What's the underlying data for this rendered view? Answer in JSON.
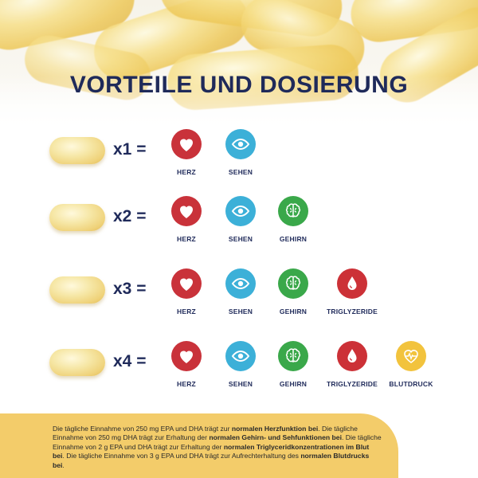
{
  "title": "VORTEILE UND DOSIERUNG",
  "rows": [
    {
      "multiplier": "x1 =",
      "benefits": [
        {
          "label": "HERZ",
          "icon": "heart-icon"
        },
        {
          "label": "SEHEN",
          "icon": "eye-icon"
        }
      ]
    },
    {
      "multiplier": "x2 =",
      "benefits": [
        {
          "label": "HERZ",
          "icon": "heart-icon"
        },
        {
          "label": "SEHEN",
          "icon": "eye-icon"
        },
        {
          "label": "GEHIRN",
          "icon": "brain-icon"
        }
      ]
    },
    {
      "multiplier": "x3 =",
      "benefits": [
        {
          "label": "HERZ",
          "icon": "heart-icon"
        },
        {
          "label": "SEHEN",
          "icon": "eye-icon"
        },
        {
          "label": "GEHIRN",
          "icon": "brain-icon"
        },
        {
          "label": "TRIGLYZERIDE",
          "icon": "blood-drop-icon"
        }
      ]
    },
    {
      "multiplier": "x4 =",
      "benefits": [
        {
          "label": "HERZ",
          "icon": "heart-icon"
        },
        {
          "label": "SEHEN",
          "icon": "eye-icon"
        },
        {
          "label": "GEHIRN",
          "icon": "brain-icon"
        },
        {
          "label": "TRIGLYZERIDE",
          "icon": "blood-drop-icon"
        },
        {
          "label": "BLUTDRUCK",
          "icon": "heart-pulse-icon"
        }
      ]
    }
  ],
  "footer": {
    "s1a": "Die tägliche Einnahme von 250 mg EPA und DHA trägt zur ",
    "s1b": "normalen Herzfunktion bei",
    "s1c": ". Die tägliche Einnahme von 250 mg DHA trägt zur Erhaltung der ",
    "s2b": "normalen Gehirn- und Sehfunktionen bei",
    "s2c": ". Die tägliche Einnahme von 2 g EPA und DHA trägt zur Erhaltung der ",
    "s3b": "normalen Triglyceridkonzentrationen im Blut bei",
    "s3c": ". Die tägliche Einnahme von 3 g EPA und DHA trägt zur Aufrechterhaltung des ",
    "s4b": "normalen Blutdrucks bei",
    "s4c": "."
  },
  "colors": {
    "title": "#1f2a5a",
    "heart": "#c9323a",
    "eye": "#3cb0d8",
    "brain": "#3aa84a",
    "drop": "#cc3137",
    "bloodpressure": "#f2c33d",
    "footer_bg": "#f3cc6a"
  }
}
